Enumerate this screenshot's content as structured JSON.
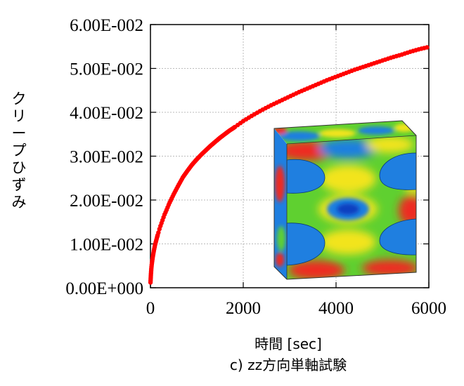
{
  "chart_data": {
    "type": "scatter",
    "xlabel": "時間 [sec]",
    "ylabel": "クリープひずみ",
    "caption": "c) zz方向単軸試験",
    "xlim": [
      0,
      6000
    ],
    "ylim": [
      0,
      0.06
    ],
    "x_ticks": [
      "0",
      "2000",
      "4000",
      "6000"
    ],
    "y_ticks": [
      "0.00E+000",
      "1.00E-002",
      "2.00E-002",
      "3.00E-002",
      "4.00E-002",
      "5.00E-002",
      "6.00E-002"
    ],
    "grid": true,
    "series": [
      {
        "color": "#ff0000",
        "marker": "circle",
        "points": [
          [
            0,
            0.001
          ],
          [
            5,
            0.002
          ],
          [
            10,
            0.003
          ],
          [
            20,
            0.0045
          ],
          [
            30,
            0.0055
          ],
          [
            50,
            0.007
          ],
          [
            75,
            0.0085
          ],
          [
            100,
            0.0098
          ],
          [
            150,
            0.0118
          ],
          [
            200,
            0.0136
          ],
          [
            250,
            0.0151
          ],
          [
            300,
            0.0166
          ],
          [
            350,
            0.0178
          ],
          [
            400,
            0.0191
          ],
          [
            500,
            0.0213
          ],
          [
            600,
            0.0233
          ],
          [
            700,
            0.0252
          ],
          [
            800,
            0.0267
          ],
          [
            900,
            0.0281
          ],
          [
            1000,
            0.0293
          ],
          [
            1100,
            0.0304
          ],
          [
            1200,
            0.0314
          ],
          [
            1300,
            0.0324
          ],
          [
            1400,
            0.0333
          ],
          [
            1500,
            0.0342
          ],
          [
            1600,
            0.035
          ],
          [
            1700,
            0.0358
          ],
          [
            1800,
            0.0365
          ],
          [
            2000,
            0.038
          ],
          [
            2200,
            0.0393
          ],
          [
            2400,
            0.0405
          ],
          [
            2600,
            0.0416
          ],
          [
            2800,
            0.0426
          ],
          [
            3000,
            0.0436
          ],
          [
            3200,
            0.0446
          ],
          [
            3400,
            0.0455
          ],
          [
            3600,
            0.0464
          ],
          [
            3800,
            0.0473
          ],
          [
            4000,
            0.0481
          ],
          [
            4200,
            0.0489
          ],
          [
            4400,
            0.0497
          ],
          [
            4600,
            0.0504
          ],
          [
            4800,
            0.0511
          ],
          [
            5000,
            0.0518
          ],
          [
            5200,
            0.0525
          ],
          [
            5400,
            0.0531
          ],
          [
            5600,
            0.0538
          ],
          [
            5800,
            0.0544
          ],
          [
            6000,
            0.0549
          ]
        ]
      }
    ]
  },
  "colors": {
    "marker": "#ff0000",
    "grid": "#bbbbbb",
    "inset_green": "#5fd030",
    "inset_blue": "#1f7fe0",
    "inset_yellow": "#f2e41a",
    "inset_red": "#ee2a20"
  }
}
